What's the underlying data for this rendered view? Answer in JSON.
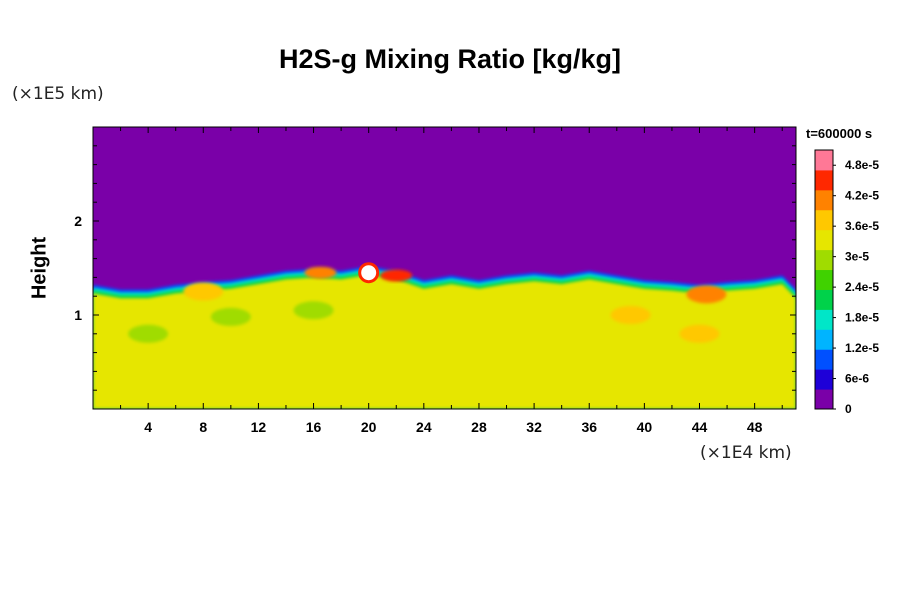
{
  "chart_data": {
    "type": "heatmap",
    "title": "H2S-g Mixing Ratio [kg/kg]",
    "xlabel": "",
    "ylabel": "Height",
    "x_unit": "(×1E4 km)",
    "y_unit": "(×1E5 km)",
    "time_label": "t=600000 s",
    "xlim": [
      0,
      51
    ],
    "ylim": [
      0,
      3
    ],
    "x_ticks": [
      4,
      8,
      12,
      16,
      20,
      24,
      28,
      32,
      36,
      40,
      44,
      48
    ],
    "y_ticks": [
      1,
      2
    ],
    "colorbar": {
      "min": 0,
      "max": 5.1e-05,
      "tick_labels": [
        "0",
        "6e-6",
        "1.2e-5",
        "1.8e-5",
        "2.4e-5",
        "3e-5",
        "3.6e-5",
        "4.2e-5",
        "4.8e-5"
      ],
      "tick_values": [
        0,
        6e-06,
        1.2e-05,
        1.8e-05,
        2.4e-05,
        3e-05,
        3.6e-05,
        4.2e-05,
        4.8e-05
      ],
      "colors": [
        "#7a00a8",
        "#1e00d8",
        "#0050ff",
        "#00b4ff",
        "#00e6c8",
        "#00d24a",
        "#40d200",
        "#a0dc00",
        "#e6e600",
        "#ffc800",
        "#ff8200",
        "#ff2800",
        "#ff7896"
      ]
    },
    "field": {
      "upper_value": 0,
      "lower_value": 3.3e-05,
      "interface_height_profile": {
        "x": [
          0,
          2,
          4,
          6,
          8,
          10,
          12,
          14,
          16,
          18,
          20,
          22,
          24,
          26,
          28,
          30,
          32,
          34,
          36,
          38,
          40,
          42,
          44,
          46,
          48,
          50,
          51
        ],
        "y": [
          1.35,
          1.3,
          1.3,
          1.35,
          1.38,
          1.4,
          1.45,
          1.5,
          1.52,
          1.5,
          1.55,
          1.5,
          1.4,
          1.45,
          1.4,
          1.45,
          1.48,
          1.45,
          1.5,
          1.45,
          1.4,
          1.38,
          1.35,
          1.38,
          1.4,
          1.45,
          1.3
        ]
      },
      "features": [
        {
          "x": 20.0,
          "y": 1.45,
          "value": 5.1e-05
        },
        {
          "x": 22.0,
          "y": 1.42,
          "value": 4.4e-05
        },
        {
          "x": 16.5,
          "y": 1.45,
          "value": 4.3e-05
        },
        {
          "x": 44.5,
          "y": 1.22,
          "value": 4e-05
        },
        {
          "x": 8.0,
          "y": 1.25,
          "value": 3.8e-05
        },
        {
          "x": 44.0,
          "y": 0.8,
          "value": 3.8e-05
        },
        {
          "x": 39.0,
          "y": 1.0,
          "value": 3.6e-05
        },
        {
          "x": 10.0,
          "y": 0.98,
          "value": 2.8e-05
        },
        {
          "x": 16.0,
          "y": 1.05,
          "value": 2.9e-05
        },
        {
          "x": 4.0,
          "y": 0.8,
          "value": 3e-05
        }
      ]
    }
  }
}
